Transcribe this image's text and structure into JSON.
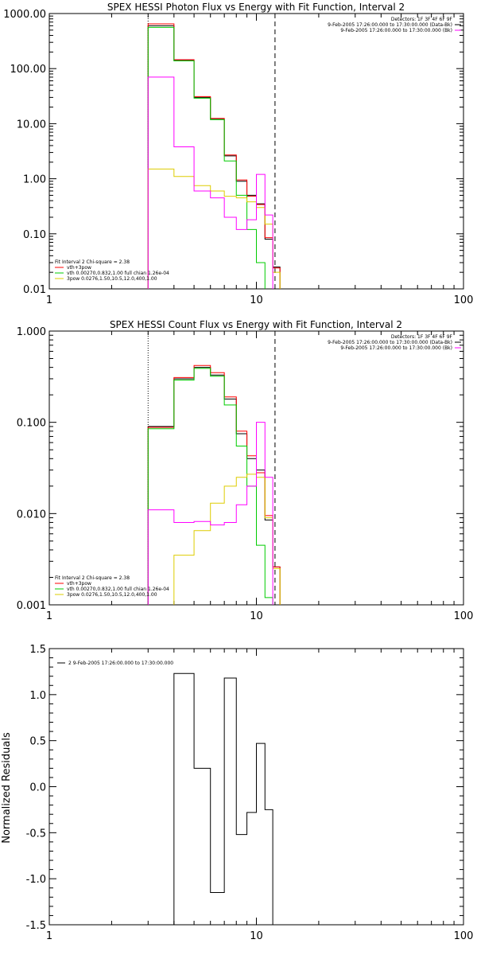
{
  "chart_data": [
    {
      "type": "line",
      "title": "SPEX HESSI Photon Flux vs Energy with Fit Function, Interval 2",
      "xlabel": "",
      "ylabel": "",
      "x_scale": "log",
      "y_scale": "log",
      "xlim": [
        1,
        100
      ],
      "ylim": [
        0.01,
        1000
      ],
      "x_tick_labels": [
        "1",
        "10",
        "100"
      ],
      "y_tick_labels": [
        "0.01",
        "0.10",
        "1.00",
        "10.00",
        "100.00",
        "1000.00"
      ],
      "vlines": [
        {
          "x": 3,
          "style": "dotted"
        },
        {
          "x": 12.3,
          "style": "dashed"
        }
      ],
      "legend_top_right": [
        {
          "text": "Detectors: 1F 3F 4F 6F 9F",
          "color": ""
        },
        {
          "text": "9-Feb-2005 17:26:00.000 to 17:30:00.000 (Data-Bk)",
          "color": "#000000"
        },
        {
          "text": "9-Feb-2005 17:26:00.000 to 17:30:00.000 (Bk)",
          "color": "#ff00ff"
        }
      ],
      "legend_bottom_left": [
        {
          "text": "Fit Interval 2   Chi-square = 2.38",
          "color": ""
        },
        {
          "text": "vth+3pow",
          "color": "#ff0000"
        },
        {
          "text": "vth 0.00270,0.832,1.00   full chian 1.26e-04",
          "color": "#00cc00"
        },
        {
          "text": "3pow 0.0276,1.50,10.5,12.0,400,1.00",
          "color": "#ddcc00"
        }
      ],
      "bin_edges": [
        3,
        4,
        5,
        6,
        7,
        8,
        9,
        10,
        11,
        12,
        13
      ],
      "series": [
        {
          "name": "Data-Bk",
          "color": "#000000",
          "values": [
            600,
            140,
            30,
            12,
            2.6,
            0.9,
            0.5,
            0.35,
            0.08,
            0.025
          ]
        },
        {
          "name": "vth+3pow",
          "color": "#ff0000",
          "values": [
            650,
            145,
            31,
            12.5,
            2.7,
            0.95,
            0.48,
            0.34,
            0.085,
            0.024
          ]
        },
        {
          "name": "vth",
          "color": "#00cc00",
          "values": [
            560,
            138,
            29,
            11.8,
            2.1,
            0.5,
            0.12,
            0.03,
            0.008,
            0.002
          ]
        },
        {
          "name": "3pow",
          "color": "#ddcc00",
          "values": [
            1.5,
            1.1,
            0.75,
            0.6,
            0.48,
            0.45,
            0.38,
            0.3,
            0.15,
            0.02
          ]
        },
        {
          "name": "Bk",
          "color": "#ff00ff",
          "values": [
            70,
            3.8,
            0.6,
            0.45,
            0.2,
            0.12,
            0.18,
            1.2,
            0.22,
            0.008
          ]
        }
      ]
    },
    {
      "type": "line",
      "title": "SPEX HESSI Count Flux vs Energy with Fit Function, Interval 2",
      "xlabel": "",
      "ylabel": "",
      "x_scale": "log",
      "y_scale": "log",
      "xlim": [
        1,
        100
      ],
      "ylim": [
        0.001,
        1
      ],
      "x_tick_labels": [
        "1",
        "10",
        "100"
      ],
      "y_tick_labels": [
        "0.001",
        "0.010",
        "0.100",
        "1.000"
      ],
      "vlines": [
        {
          "x": 3,
          "style": "dotted"
        },
        {
          "x": 12.3,
          "style": "dashed"
        }
      ],
      "legend_top_right": [
        {
          "text": "Detectors: 1F 3F 4F 6F 9F",
          "color": ""
        },
        {
          "text": "9-Feb-2005 17:26:00.000 to 17:30:00.000 (Data-Bk)",
          "color": "#000000"
        },
        {
          "text": "9-Feb-2005 17:26:00.000 to 17:30:00.000 (Bk)",
          "color": "#ff00ff"
        }
      ],
      "legend_bottom_left": [
        {
          "text": "Fit Interval 2   Chi-square = 2.38",
          "color": ""
        },
        {
          "text": "vth+3pow",
          "color": "#ff0000"
        },
        {
          "text": "vth 0.00270,0.832,1.00   full chian 1.26e-04",
          "color": "#00cc00"
        },
        {
          "text": "3pow 0.0276,1.50,10.5,12.0,400,1.00",
          "color": "#ddcc00"
        }
      ],
      "bin_edges": [
        3,
        4,
        5,
        6,
        7,
        8,
        9,
        10,
        11,
        12,
        13
      ],
      "series": [
        {
          "name": "Data-Bk",
          "color": "#000000",
          "values": [
            0.09,
            0.3,
            0.4,
            0.33,
            0.18,
            0.075,
            0.04,
            0.03,
            0.0085,
            0.0026
          ]
        },
        {
          "name": "vth+3pow",
          "color": "#ff0000",
          "values": [
            0.088,
            0.31,
            0.42,
            0.35,
            0.19,
            0.08,
            0.043,
            0.028,
            0.0095,
            0.0026
          ]
        },
        {
          "name": "vth",
          "color": "#00cc00",
          "values": [
            0.085,
            0.29,
            0.39,
            0.32,
            0.155,
            0.055,
            0.02,
            0.0045,
            0.0012,
            0.0003
          ]
        },
        {
          "name": "3pow",
          "color": "#ddcc00",
          "values": [
            0.0008,
            0.0035,
            0.0065,
            0.013,
            0.02,
            0.025,
            0.027,
            0.025,
            0.009,
            0.0025
          ]
        },
        {
          "name": "Bk",
          "color": "#ff00ff",
          "values": [
            0.011,
            0.008,
            0.0082,
            0.0075,
            0.008,
            0.0125,
            0.02,
            0.1,
            0.025,
            0.0008
          ]
        }
      ]
    },
    {
      "type": "line",
      "title": "",
      "xlabel": "",
      "ylabel": "Normalized Residuals",
      "x_scale": "log",
      "y_scale": "linear",
      "xlim": [
        1,
        100
      ],
      "ylim": [
        -1.5,
        1.5
      ],
      "x_tick_labels": [
        "1",
        "10",
        "100"
      ],
      "y_tick_values": [
        -1.5,
        -1.0,
        -0.5,
        0.0,
        0.5,
        1.0,
        1.5
      ],
      "y_tick_labels": [
        "-1.5",
        "-1.0",
        "-0.5",
        "0.0",
        "0.5",
        "1.0",
        "1.5"
      ],
      "legend": [
        {
          "text": "2  9-Feb-2005 17:26:00.000 to 17:30:00.000",
          "color": "#000000"
        }
      ],
      "bin_edges": [
        4,
        5,
        6,
        7,
        8,
        9,
        10,
        11,
        12
      ],
      "series": [
        {
          "name": "2",
          "color": "#000000",
          "values": [
            1.23,
            0.2,
            -1.15,
            1.18,
            -0.52,
            -0.28,
            0.47,
            -0.25
          ]
        }
      ]
    }
  ]
}
